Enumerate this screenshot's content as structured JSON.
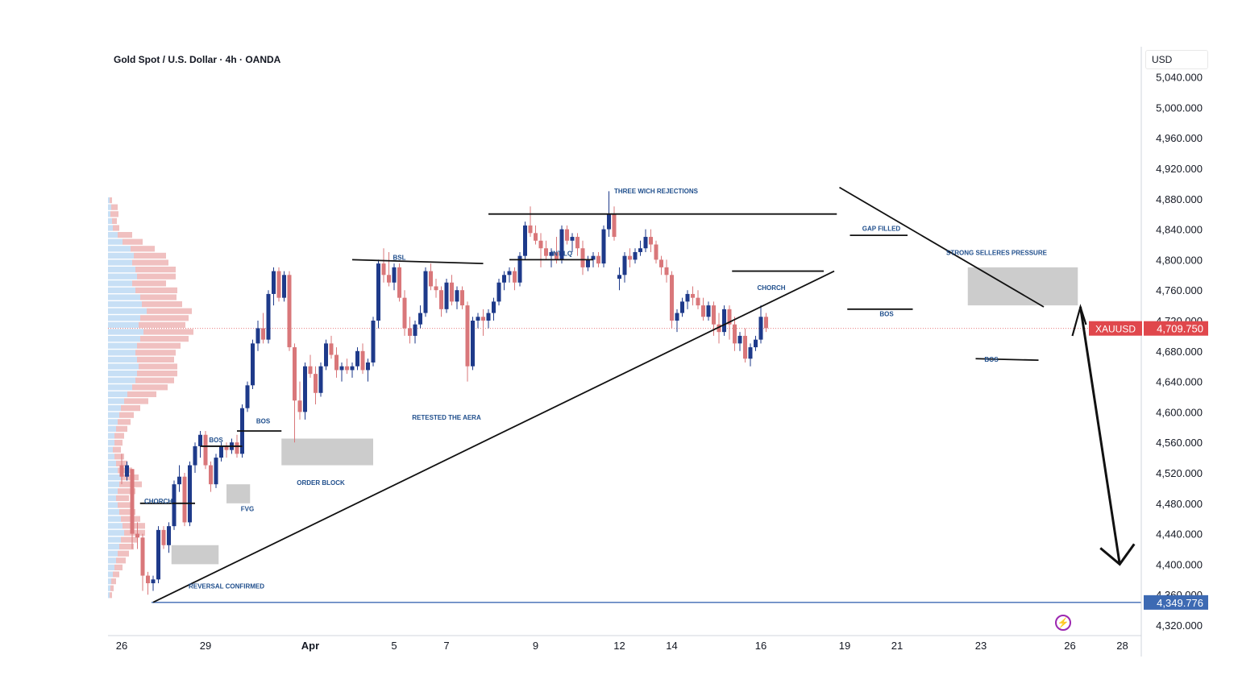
{
  "header": {
    "title": "Gold Spot / U.S. Dollar · 4h · OANDA",
    "currency": "USD"
  },
  "colors": {
    "bull": "#1e3a8a",
    "bear": "#d9777a",
    "zone": "#c9c9c9",
    "annotation_text": "#1f4e8c",
    "price_tag": "#e0474c",
    "support_line": "#3d6ab3",
    "volume_bull": "#c7dff5",
    "volume_bear": "#f0c0c0"
  },
  "chart_data": {
    "type": "candlestick",
    "symbol": "XAUUSD",
    "timeframe": "4h",
    "y_axis": {
      "ticks": [
        "5,040.000",
        "5,000.000",
        "4,960.000",
        "4,920.000",
        "4,880.000",
        "4,840.000",
        "4,800.000",
        "4,760.000",
        "4,720.000",
        "4,680.000",
        "4,640.000",
        "4,600.000",
        "4,560.000",
        "4,520.000",
        "4,480.000",
        "4,440.000",
        "4,400.000",
        "4,360.000",
        "4,320.000"
      ],
      "range": [
        4300,
        5050
      ]
    },
    "x_axis": {
      "ticks": [
        {
          "label": "26",
          "bar": 0
        },
        {
          "label": "29",
          "bar": 16
        },
        {
          "label": "Apr",
          "bar": 36,
          "bold": true
        },
        {
          "label": "5",
          "bar": 52
        },
        {
          "label": "7",
          "bar": 62
        },
        {
          "label": "9",
          "bar": 79
        },
        {
          "label": "12",
          "bar": 95
        },
        {
          "label": "14",
          "bar": 105
        },
        {
          "label": "16",
          "bar": 122
        },
        {
          "label": "19",
          "bar": 138
        },
        {
          "label": "21",
          "bar": 148
        },
        {
          "label": "23",
          "bar": 164
        },
        {
          "label": "26",
          "bar": 181
        },
        {
          "label": "28",
          "bar": 191
        }
      ]
    },
    "current_price": {
      "label": "XAUUSD",
      "value": "4,709.750",
      "price": 4709.75
    },
    "support_level": {
      "value": "4,349.776",
      "price": 4349.776
    },
    "candles": [
      [
        4530,
        4545,
        4505,
        4515
      ],
      [
        4515,
        4535,
        4510,
        4530
      ],
      [
        4525,
        4525,
        4420,
        4440
      ],
      [
        4440,
        4455,
        4420,
        4435
      ],
      [
        4435,
        4440,
        4365,
        4385
      ],
      [
        4385,
        4390,
        4360,
        4375
      ],
      [
        4375,
        4385,
        4365,
        4380
      ],
      [
        4380,
        4450,
        4375,
        4445
      ],
      [
        4445,
        4450,
        4420,
        4425
      ],
      [
        4425,
        4455,
        4415,
        4450
      ],
      [
        4450,
        4510,
        4445,
        4505
      ],
      [
        4505,
        4530,
        4495,
        4515
      ],
      [
        4515,
        4520,
        4450,
        4455
      ],
      [
        4455,
        4535,
        4450,
        4530
      ],
      [
        4530,
        4560,
        4520,
        4555
      ],
      [
        4555,
        4575,
        4540,
        4570
      ],
      [
        4570,
        4575,
        4525,
        4530
      ],
      [
        4530,
        4535,
        4495,
        4505
      ],
      [
        4505,
        4545,
        4500,
        4540
      ],
      [
        4540,
        4560,
        4535,
        4555
      ],
      [
        4555,
        4560,
        4540,
        4550
      ],
      [
        4550,
        4565,
        4545,
        4560
      ],
      [
        4560,
        4570,
        4540,
        4545
      ],
      [
        4545,
        4610,
        4540,
        4605
      ],
      [
        4605,
        4640,
        4600,
        4635
      ],
      [
        4635,
        4695,
        4630,
        4690
      ],
      [
        4690,
        4720,
        4680,
        4710
      ],
      [
        4710,
        4730,
        4690,
        4695
      ],
      [
        4695,
        4760,
        4690,
        4755
      ],
      [
        4755,
        4790,
        4740,
        4785
      ],
      [
        4785,
        4790,
        4745,
        4750
      ],
      [
        4750,
        4785,
        4745,
        4780
      ],
      [
        4780,
        4785,
        4680,
        4685
      ],
      [
        4685,
        4690,
        4560,
        4615
      ],
      [
        4615,
        4640,
        4590,
        4600
      ],
      [
        4600,
        4665,
        4590,
        4660
      ],
      [
        4660,
        4675,
        4645,
        4650
      ],
      [
        4650,
        4660,
        4610,
        4625
      ],
      [
        4625,
        4665,
        4620,
        4660
      ],
      [
        4660,
        4695,
        4655,
        4690
      ],
      [
        4690,
        4700,
        4670,
        4675
      ],
      [
        4675,
        4685,
        4645,
        4655
      ],
      [
        4655,
        4665,
        4640,
        4660
      ],
      [
        4660,
        4670,
        4650,
        4655
      ],
      [
        4655,
        4665,
        4645,
        4660
      ],
      [
        4660,
        4685,
        4655,
        4680
      ],
      [
        4680,
        4690,
        4650,
        4655
      ],
      [
        4655,
        4670,
        4640,
        4665
      ],
      [
        4665,
        4725,
        4660,
        4720
      ],
      [
        4720,
        4800,
        4710,
        4795
      ],
      [
        4795,
        4815,
        4770,
        4780
      ],
      [
        4780,
        4810,
        4765,
        4770
      ],
      [
        4770,
        4795,
        4760,
        4790
      ],
      [
        4790,
        4795,
        4745,
        4750
      ],
      [
        4750,
        4760,
        4700,
        4710
      ],
      [
        4710,
        4725,
        4690,
        4700
      ],
      [
        4700,
        4720,
        4690,
        4715
      ],
      [
        4715,
        4740,
        4710,
        4730
      ],
      [
        4730,
        4790,
        4725,
        4785
      ],
      [
        4785,
        4795,
        4760,
        4765
      ],
      [
        4765,
        4775,
        4750,
        4760
      ],
      [
        4760,
        4765,
        4725,
        4735
      ],
      [
        4735,
        4775,
        4730,
        4770
      ],
      [
        4770,
        4780,
        4740,
        4745
      ],
      [
        4745,
        4765,
        4735,
        4760
      ],
      [
        4760,
        4765,
        4735,
        4740
      ],
      [
        4740,
        4745,
        4640,
        4660
      ],
      [
        4660,
        4725,
        4655,
        4720
      ],
      [
        4720,
        4730,
        4710,
        4725
      ],
      [
        4725,
        4735,
        4700,
        4720
      ],
      [
        4720,
        4735,
        4710,
        4730
      ],
      [
        4730,
        4750,
        4720,
        4745
      ],
      [
        4745,
        4775,
        4740,
        4770
      ],
      [
        4770,
        4785,
        4760,
        4780
      ],
      [
        4780,
        4790,
        4770,
        4785
      ],
      [
        4785,
        4790,
        4760,
        4770
      ],
      [
        4770,
        4810,
        4765,
        4805
      ],
      [
        4805,
        4850,
        4800,
        4845
      ],
      [
        4845,
        4870,
        4830,
        4835
      ],
      [
        4835,
        4845,
        4820,
        4825
      ],
      [
        4825,
        4835,
        4790,
        4815
      ],
      [
        4815,
        4825,
        4800,
        4805
      ],
      [
        4805,
        4815,
        4790,
        4810
      ],
      [
        4810,
        4830,
        4795,
        4800
      ],
      [
        4800,
        4845,
        4795,
        4840
      ],
      [
        4840,
        4845,
        4820,
        4825
      ],
      [
        4825,
        4835,
        4810,
        4830
      ],
      [
        4830,
        4835,
        4805,
        4815
      ],
      [
        4815,
        4825,
        4780,
        4790
      ],
      [
        4790,
        4805,
        4785,
        4800
      ],
      [
        4800,
        4810,
        4790,
        4805
      ],
      [
        4805,
        4810,
        4790,
        4795
      ],
      [
        4795,
        4845,
        4790,
        4840
      ],
      [
        4840,
        4890,
        4830,
        4860
      ],
      [
        4860,
        4870,
        4825,
        4830
      ],
      [
        4775,
        4790,
        4760,
        4780
      ],
      [
        4780,
        4810,
        4770,
        4805
      ],
      [
        4805,
        4815,
        4790,
        4800
      ],
      [
        4800,
        4815,
        4795,
        4810
      ],
      [
        4810,
        4825,
        4805,
        4815
      ],
      [
        4815,
        4840,
        4810,
        4830
      ],
      [
        4830,
        4840,
        4810,
        4820
      ],
      [
        4820,
        4825,
        4795,
        4800
      ],
      [
        4800,
        4805,
        4780,
        4790
      ],
      [
        4790,
        4800,
        4770,
        4780
      ],
      [
        4780,
        4785,
        4710,
        4720
      ],
      [
        4720,
        4735,
        4705,
        4730
      ],
      [
        4730,
        4750,
        4725,
        4745
      ],
      [
        4745,
        4760,
        4735,
        4755
      ],
      [
        4755,
        4765,
        4740,
        4750
      ],
      [
        4750,
        4760,
        4735,
        4740
      ],
      [
        4740,
        4750,
        4720,
        4725
      ],
      [
        4725,
        4745,
        4720,
        4740
      ],
      [
        4740,
        4745,
        4700,
        4715
      ],
      [
        4715,
        4730,
        4690,
        4705
      ],
      [
        4705,
        4740,
        4700,
        4735
      ],
      [
        4735,
        4740,
        4695,
        4715
      ],
      [
        4715,
        4725,
        4680,
        4690
      ],
      [
        4690,
        4705,
        4680,
        4700
      ],
      [
        4700,
        4710,
        4665,
        4670
      ],
      [
        4670,
        4690,
        4660,
        4685
      ],
      [
        4685,
        4700,
        4680,
        4695
      ],
      [
        4695,
        4740,
        4690,
        4725
      ],
      [
        4725,
        4730,
        4705,
        4710
      ]
    ],
    "volume_profile": [
      {
        "u": 2,
        "d": 3
      },
      {
        "u": 4,
        "d": 8
      },
      {
        "u": 3,
        "d": 10
      },
      {
        "u": 5,
        "d": 6
      },
      {
        "u": 6,
        "d": 8
      },
      {
        "u": 12,
        "d": 18
      },
      {
        "u": 18,
        "d": 25
      },
      {
        "u": 28,
        "d": 30
      },
      {
        "u": 32,
        "d": 40
      },
      {
        "u": 30,
        "d": 45
      },
      {
        "u": 34,
        "d": 50
      },
      {
        "u": 36,
        "d": 48
      },
      {
        "u": 30,
        "d": 42
      },
      {
        "u": 34,
        "d": 52
      },
      {
        "u": 40,
        "d": 45
      },
      {
        "u": 42,
        "d": 50
      },
      {
        "u": 48,
        "d": 56
      },
      {
        "u": 40,
        "d": 60
      },
      {
        "u": 38,
        "d": 58
      },
      {
        "u": 44,
        "d": 62
      },
      {
        "u": 40,
        "d": 60
      },
      {
        "u": 36,
        "d": 54
      },
      {
        "u": 34,
        "d": 50
      },
      {
        "u": 36,
        "d": 46
      },
      {
        "u": 38,
        "d": 48
      },
      {
        "u": 36,
        "d": 50
      },
      {
        "u": 34,
        "d": 48
      },
      {
        "u": 30,
        "d": 44
      },
      {
        "u": 24,
        "d": 36
      },
      {
        "u": 20,
        "d": 30
      },
      {
        "u": 16,
        "d": 24
      },
      {
        "u": 14,
        "d": 18
      },
      {
        "u": 12,
        "d": 16
      },
      {
        "u": 10,
        "d": 14
      },
      {
        "u": 8,
        "d": 12
      },
      {
        "u": 8,
        "d": 10
      },
      {
        "u": 6,
        "d": 10
      },
      {
        "u": 8,
        "d": 12
      },
      {
        "u": 10,
        "d": 14
      },
      {
        "u": 12,
        "d": 18
      },
      {
        "u": 16,
        "d": 22
      },
      {
        "u": 14,
        "d": 28
      },
      {
        "u": 12,
        "d": 22
      },
      {
        "u": 10,
        "d": 16
      },
      {
        "u": 12,
        "d": 18
      },
      {
        "u": 14,
        "d": 20
      },
      {
        "u": 16,
        "d": 24
      },
      {
        "u": 18,
        "d": 28
      },
      {
        "u": 20,
        "d": 26
      },
      {
        "u": 16,
        "d": 20
      },
      {
        "u": 14,
        "d": 18
      },
      {
        "u": 12,
        "d": 14
      },
      {
        "u": 10,
        "d": 12
      },
      {
        "u": 8,
        "d": 10
      },
      {
        "u": 6,
        "d": 8
      },
      {
        "u": 4,
        "d": 6
      },
      {
        "u": 3,
        "d": 4
      },
      {
        "u": 2,
        "d": 3
      }
    ],
    "annotations": {
      "labels": [
        {
          "text": "CHORCH",
          "bar": 7,
          "price": 4480
        },
        {
          "text": "BOS",
          "bar": 18,
          "price": 4560
        },
        {
          "text": "BOS",
          "bar": 27,
          "price": 4585
        },
        {
          "text": "FVG",
          "bar": 24,
          "price": 4470
        },
        {
          "text": "REVERSAL CONFIRMED",
          "bar": 20,
          "price": 4368
        },
        {
          "text": "ORDER BLOCK",
          "bar": 38,
          "price": 4504
        },
        {
          "text": "BSL",
          "bar": 53,
          "price": 4800
        },
        {
          "text": "RETESTED THE AERA",
          "bar": 62,
          "price": 4590
        },
        {
          "text": "INT LQ",
          "bar": 84,
          "price": 4805
        },
        {
          "text": "THREE WICH REJECTIONS",
          "bar": 102,
          "price": 4887
        },
        {
          "text": "CHORCH",
          "bar": 124,
          "price": 4760
        },
        {
          "text": "GAP FILLED",
          "bar": 145,
          "price": 4838
        },
        {
          "text": "STRONG SELLERES PRESSURE",
          "bar": 167,
          "price": 4806
        },
        {
          "text": "BOS",
          "bar": 146,
          "price": 4726
        },
        {
          "text": "BOS",
          "bar": 166,
          "price": 4666
        }
      ],
      "zones": [
        {
          "bar_start": 9.5,
          "bar_end": 18.5,
          "price_top": 4425,
          "price_bottom": 4400
        },
        {
          "bar_start": 20,
          "bar_end": 24.5,
          "price_top": 4505,
          "price_bottom": 4480
        },
        {
          "bar_start": 30.5,
          "bar_end": 48,
          "price_top": 4565,
          "price_bottom": 4530
        },
        {
          "bar_start": 161.5,
          "bar_end": 182.5,
          "price_top": 4790,
          "price_bottom": 4740
        }
      ],
      "lines": [
        {
          "b1": 3.5,
          "p1": 4480,
          "b2": 14,
          "p2": 4480
        },
        {
          "b1": 15,
          "p1": 4555,
          "b2": 23,
          "p2": 4555
        },
        {
          "b1": 22,
          "p1": 4575,
          "b2": 30.5,
          "p2": 4575
        },
        {
          "b1": 44,
          "p1": 4800,
          "b2": 69,
          "p2": 4795
        },
        {
          "b1": 70,
          "p1": 4860,
          "b2": 136.5,
          "p2": 4860
        },
        {
          "b1": 74,
          "p1": 4800,
          "b2": 90,
          "p2": 4800
        },
        {
          "b1": 116.5,
          "p1": 4785,
          "b2": 134,
          "p2": 4785
        },
        {
          "b1": 139,
          "p1": 4832,
          "b2": 150,
          "p2": 4832
        },
        {
          "b1": 138.5,
          "p1": 4735,
          "b2": 151,
          "p2": 4735
        },
        {
          "b1": 163,
          "p1": 4670,
          "b2": 175,
          "p2": 4668
        },
        {
          "b1": 6,
          "p1": 4350,
          "b2": 136,
          "p2": 4785
        },
        {
          "b1": 137,
          "p1": 4895,
          "b2": 176,
          "p2": 4738
        }
      ],
      "arrow": {
        "b1": 183,
        "p1": 4738,
        "b2": 190.5,
        "p2": 4400
      }
    }
  }
}
